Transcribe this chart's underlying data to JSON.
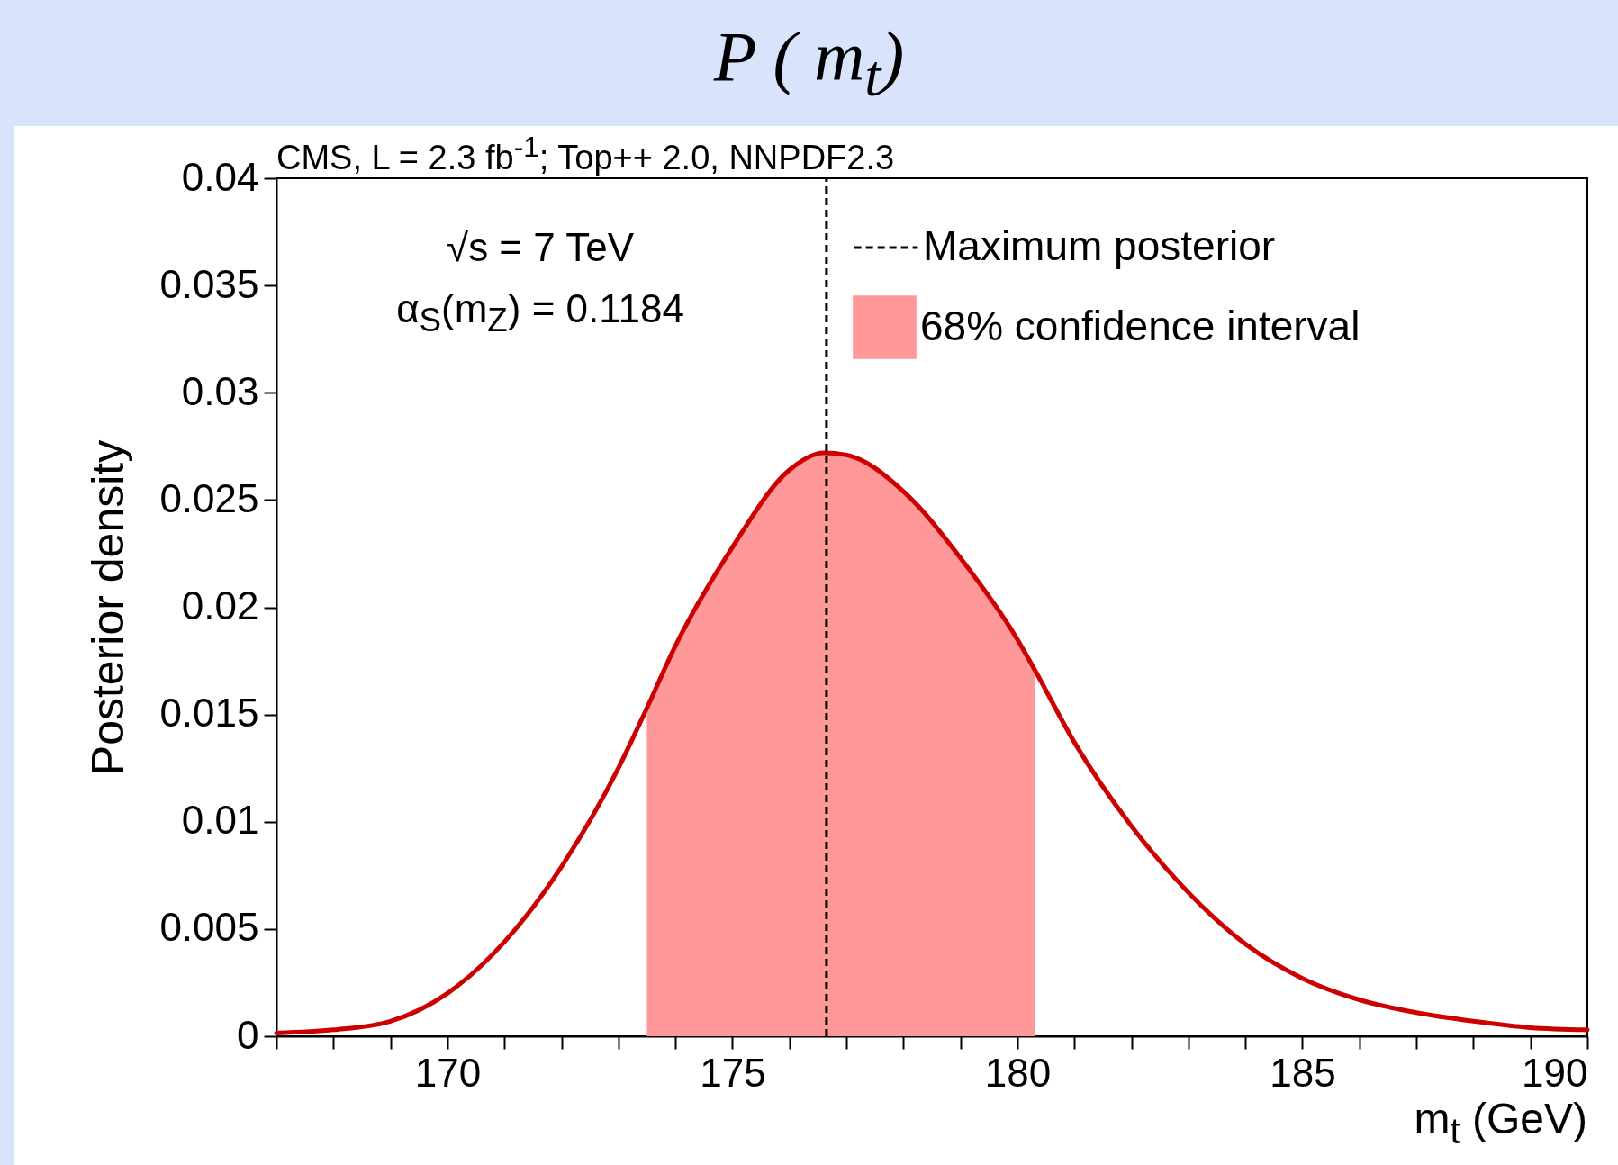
{
  "chart_data": {
    "type": "line",
    "title": "P ( m$_{t}$)",
    "xlabel": "m$_{t}$ (GeV)",
    "ylabel": "Posterior density",
    "annotations": [
      "CMS, L = 2.3 fb$^{-1}$; Top++ 2.0, NNPDF2.3",
      "√s = 7 TeV",
      "α$_{S}$(m$_{Z}$) = 0.1184"
    ],
    "series": [
      {
        "type": "area",
        "name": "68% confidence interval",
        "color": "#ff9999",
        "x": [
          173.5,
          174,
          175,
          176,
          176.6,
          177,
          178,
          179,
          180,
          180.3
        ],
        "values": [
          0.0153,
          0.0182,
          0.0228,
          0.0264,
          0.0272,
          0.0271,
          0.0254,
          0.0223,
          0.0185,
          0.0171
        ]
      },
      {
        "color": "#cc0000",
        "x": [
          167,
          168,
          169,
          170,
          171,
          172,
          173,
          173.5,
          174,
          175,
          176,
          176.6,
          177,
          178,
          179,
          180,
          180.3,
          181,
          182,
          183,
          184,
          185,
          186,
          187,
          188,
          189,
          190
        ],
        "values": [
          0.00015,
          0.0003,
          0.0007,
          0.002,
          0.0044,
          0.0079,
          0.0125,
          0.0153,
          0.0182,
          0.0228,
          0.0264,
          0.0272,
          0.0271,
          0.0254,
          0.0223,
          0.0185,
          0.0171,
          0.0137,
          0.0098,
          0.0067,
          0.0043,
          0.0027,
          0.0017,
          0.0011,
          0.0007,
          0.0004,
          0.0003
        ]
      }
    ],
    "ref_lines": [
      {
        "axis": "x",
        "value": 176.65,
        "label": "Maximum posterior",
        "color": "#000000",
        "line_style": "dashed"
      }
    ],
    "xlim": [
      167,
      190
    ],
    "xticks": [
      {
        "value": 167,
        "label": null
      },
      {
        "value": 168,
        "label": null
      },
      {
        "value": 169,
        "label": null
      },
      170,
      {
        "value": 171,
        "label": null
      },
      {
        "value": 172,
        "label": null
      },
      {
        "value": 173,
        "label": null
      },
      {
        "value": 174,
        "label": null
      },
      175,
      {
        "value": 176,
        "label": null
      },
      {
        "value": 177,
        "label": null
      },
      {
        "value": 178,
        "label": null
      },
      {
        "value": 179,
        "label": null
      },
      180,
      {
        "value": 181,
        "label": null
      },
      {
        "value": 182,
        "label": null
      },
      {
        "value": 183,
        "label": null
      },
      {
        "value": 184,
        "label": null
      },
      185,
      {
        "value": 186,
        "label": null
      },
      {
        "value": 187,
        "label": null
      },
      {
        "value": 188,
        "label": null
      },
      {
        "value": 189,
        "label": null
      },
      190
    ],
    "ylim": [
      0,
      0.04
    ],
    "yticks": [
      0,
      0.005,
      0.01,
      0.015,
      0.02,
      0.025,
      0.03,
      0.035,
      0.04
    ],
    "grid": false,
    "legend": "top right",
    "marker": "none",
    "line_style": "solid"
  }
}
